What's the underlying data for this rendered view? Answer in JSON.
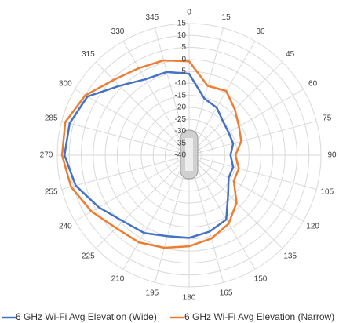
{
  "chart_data": {
    "type": "radar",
    "categories": [
      0,
      15,
      30,
      45,
      60,
      75,
      90,
      105,
      120,
      135,
      150,
      165,
      180,
      195,
      210,
      225,
      240,
      255,
      270,
      285,
      300,
      315,
      330,
      345
    ],
    "rlim": [
      -40,
      15
    ],
    "rticks": [
      -40,
      -35,
      -30,
      -25,
      -20,
      -15,
      -10,
      -5,
      0,
      5,
      10,
      15
    ],
    "grid": true,
    "legend": "bottom",
    "series": [
      {
        "name": "6 GHz Wi-Fi Avg Elevation (Wide)",
        "color": "#4472c4",
        "values": [
          -6,
          -15.5,
          -17,
          -20,
          -21,
          -21,
          -22.7,
          -21,
          -21,
          -17,
          -9,
          -7,
          -5.5,
          -5,
          -2.5,
          -1,
          3.5,
          9,
          12,
          11.6,
          9,
          1,
          -3.4,
          -4
        ]
      },
      {
        "name": "6 GHz Wi-Fi Avg Elevation (Narrow)",
        "color": "#ed7d31",
        "values": [
          -0.8,
          -10,
          -9,
          -13,
          -16,
          -17.5,
          -20.7,
          -18.5,
          -18.5,
          -12,
          -7,
          -4,
          -2,
          0,
          2,
          3,
          7,
          11,
          13,
          13.5,
          10,
          4.5,
          2,
          1
        ]
      }
    ]
  }
}
